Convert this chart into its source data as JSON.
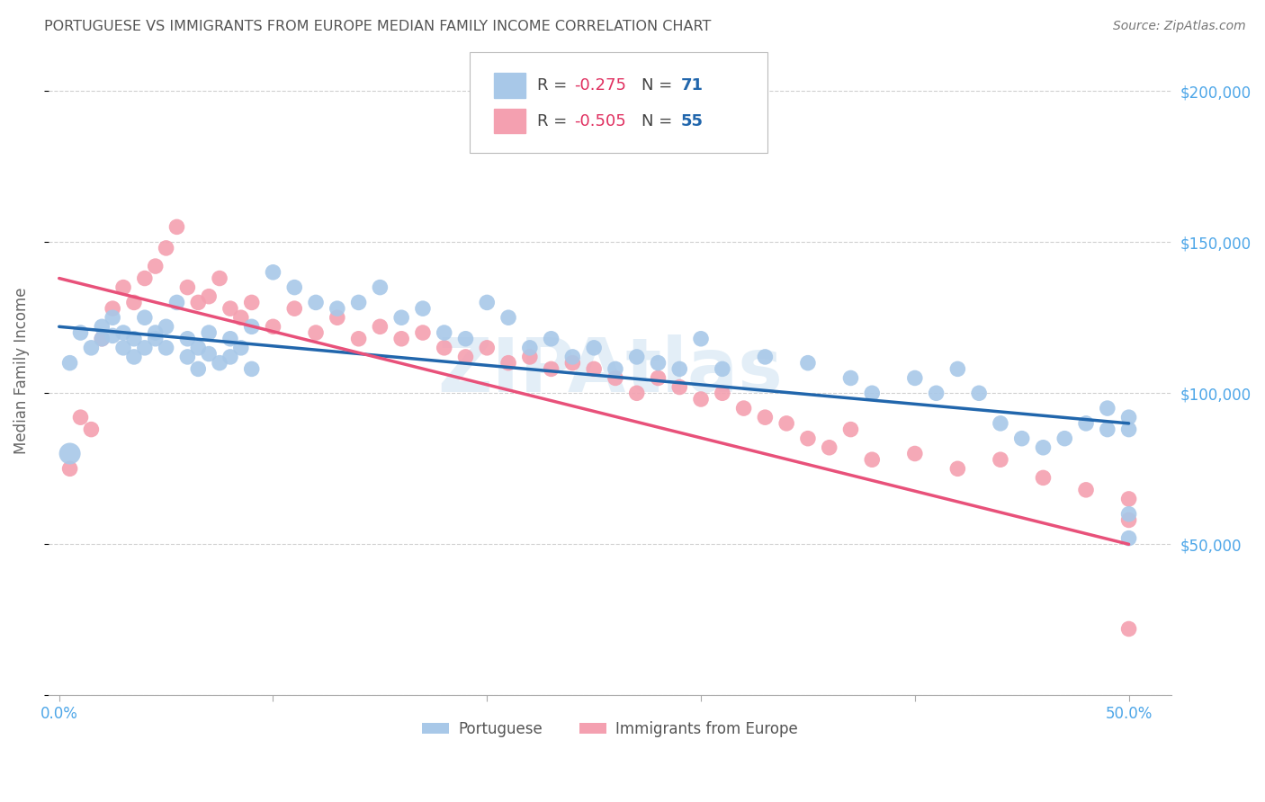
{
  "title": "PORTUGUESE VS IMMIGRANTS FROM EUROPE MEDIAN FAMILY INCOME CORRELATION CHART",
  "source": "Source: ZipAtlas.com",
  "xlabel_tick_vals": [
    0.0,
    0.1,
    0.2,
    0.3,
    0.4,
    0.5
  ],
  "xlabel_tick_labels": [
    "0.0%",
    "",
    "",
    "",
    "",
    "50.0%"
  ],
  "ylabel": "Median Family Income",
  "ylabel_ticks": [
    0,
    50000,
    100000,
    150000,
    200000
  ],
  "ylabel_tick_labels": [
    "",
    "$50,000",
    "$100,000",
    "$150,000",
    "$200,000"
  ],
  "blue_color": "#a8c8e8",
  "pink_color": "#f4a0b0",
  "blue_line_color": "#2166ac",
  "pink_line_color": "#e8517a",
  "legend_bottom_blue": "Portuguese",
  "legend_bottom_pink": "Immigrants from Europe",
  "watermark": "ZIPAtlas",
  "blue_scatter_x": [
    0.005,
    0.01,
    0.015,
    0.02,
    0.02,
    0.025,
    0.025,
    0.03,
    0.03,
    0.035,
    0.035,
    0.04,
    0.04,
    0.045,
    0.045,
    0.05,
    0.05,
    0.055,
    0.06,
    0.06,
    0.065,
    0.065,
    0.07,
    0.07,
    0.075,
    0.08,
    0.08,
    0.085,
    0.09,
    0.09,
    0.1,
    0.11,
    0.12,
    0.13,
    0.14,
    0.15,
    0.16,
    0.17,
    0.18,
    0.19,
    0.2,
    0.21,
    0.22,
    0.23,
    0.24,
    0.25,
    0.26,
    0.27,
    0.28,
    0.29,
    0.3,
    0.31,
    0.33,
    0.35,
    0.37,
    0.38,
    0.4,
    0.41,
    0.42,
    0.43,
    0.44,
    0.45,
    0.46,
    0.47,
    0.48,
    0.49,
    0.49,
    0.5,
    0.5,
    0.5,
    0.5
  ],
  "blue_scatter_y": [
    110000,
    120000,
    115000,
    122000,
    118000,
    125000,
    119000,
    115000,
    120000,
    118000,
    112000,
    125000,
    115000,
    120000,
    118000,
    122000,
    115000,
    130000,
    118000,
    112000,
    115000,
    108000,
    120000,
    113000,
    110000,
    118000,
    112000,
    115000,
    122000,
    108000,
    140000,
    135000,
    130000,
    128000,
    130000,
    135000,
    125000,
    128000,
    120000,
    118000,
    130000,
    125000,
    115000,
    118000,
    112000,
    115000,
    108000,
    112000,
    110000,
    108000,
    118000,
    108000,
    112000,
    110000,
    105000,
    100000,
    105000,
    100000,
    108000,
    100000,
    90000,
    85000,
    82000,
    85000,
    90000,
    95000,
    88000,
    92000,
    88000,
    60000,
    52000
  ],
  "blue_scatter_special": [
    0.005,
    80000,
    300
  ],
  "pink_scatter_x": [
    0.005,
    0.01,
    0.015,
    0.02,
    0.025,
    0.03,
    0.035,
    0.04,
    0.045,
    0.05,
    0.055,
    0.06,
    0.065,
    0.07,
    0.075,
    0.08,
    0.085,
    0.09,
    0.1,
    0.11,
    0.12,
    0.13,
    0.14,
    0.15,
    0.16,
    0.17,
    0.18,
    0.19,
    0.2,
    0.21,
    0.22,
    0.23,
    0.24,
    0.25,
    0.26,
    0.27,
    0.28,
    0.29,
    0.3,
    0.31,
    0.32,
    0.33,
    0.34,
    0.35,
    0.36,
    0.37,
    0.38,
    0.4,
    0.42,
    0.44,
    0.46,
    0.48,
    0.5,
    0.5,
    0.5
  ],
  "pink_scatter_y": [
    75000,
    92000,
    88000,
    118000,
    128000,
    135000,
    130000,
    138000,
    142000,
    148000,
    155000,
    135000,
    130000,
    132000,
    138000,
    128000,
    125000,
    130000,
    122000,
    128000,
    120000,
    125000,
    118000,
    122000,
    118000,
    120000,
    115000,
    112000,
    115000,
    110000,
    112000,
    108000,
    110000,
    108000,
    105000,
    100000,
    105000,
    102000,
    98000,
    100000,
    95000,
    92000,
    90000,
    85000,
    82000,
    88000,
    78000,
    80000,
    75000,
    78000,
    72000,
    68000,
    65000,
    58000,
    22000
  ],
  "blue_line_x": [
    0.0,
    0.5
  ],
  "blue_line_y": [
    122000,
    90000
  ],
  "pink_line_x": [
    0.0,
    0.5
  ],
  "pink_line_y": [
    138000,
    50000
  ],
  "xlim": [
    -0.005,
    0.52
  ],
  "ylim": [
    0,
    215000
  ],
  "background_color": "#ffffff",
  "grid_color": "#d0d0d0",
  "right_label_color": "#4da6e8",
  "title_color": "#555555",
  "source_color": "#777777"
}
